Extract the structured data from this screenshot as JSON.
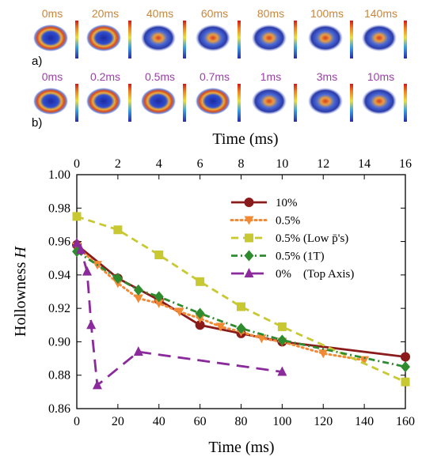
{
  "panels": {
    "a": {
      "label": "a)",
      "frames": [
        "0ms",
        "20ms",
        "40ms",
        "60ms",
        "80ms",
        "100ms",
        "140ms"
      ],
      "label_color": "#c8863c"
    },
    "b": {
      "label": "b)",
      "frames": [
        "0ms",
        "0.2ms",
        "0.5ms",
        "0.7ms",
        "1ms",
        "3ms",
        "10ms"
      ],
      "label_color": "#9b3fa8"
    },
    "frames_axis_label": "Time (ms)"
  },
  "chart_data": {
    "type": "line",
    "xlabel": "Time (ms)",
    "ylabel": "Hollowness H",
    "ylabel_main": "Hollowness ",
    "ylabel_var": "H",
    "xlim": [
      0,
      160
    ],
    "ylim": [
      0.86,
      1.0
    ],
    "x_ticks": [
      "0",
      "20",
      "40",
      "60",
      "80",
      "100",
      "120",
      "140",
      "160"
    ],
    "y_ticks": [
      "0.86",
      "0.88",
      "0.90",
      "0.92",
      "0.94",
      "0.96",
      "0.98",
      "1.00"
    ],
    "top_axis": {
      "xlim": [
        0,
        16
      ],
      "ticks": [
        "0",
        "2",
        "4",
        "6",
        "8",
        "10",
        "12",
        "14",
        "16"
      ]
    },
    "legend_position": "top-right",
    "series": [
      {
        "name": "10%",
        "color": "#8b1a1a",
        "style": "solid",
        "marker": "circle",
        "axis": "bottom",
        "x": [
          0,
          20,
          40,
          60,
          80,
          100,
          160
        ],
        "y": [
          0.958,
          0.938,
          0.925,
          0.91,
          0.905,
          0.9,
          0.891
        ]
      },
      {
        "name": "0.5%",
        "color": "#f28a35",
        "style": "dotted",
        "marker": "triangle-down",
        "axis": "bottom",
        "x": [
          0,
          10,
          20,
          30,
          40,
          50,
          60,
          70,
          80,
          90,
          100,
          120,
          140
        ],
        "y": [
          0.957,
          0.946,
          0.935,
          0.926,
          0.923,
          0.918,
          0.914,
          0.909,
          0.906,
          0.902,
          0.9,
          0.893,
          0.889
        ]
      },
      {
        "name": "0.5% (Low p̄'s)",
        "color": "#c8c832",
        "style": "dashed",
        "marker": "square",
        "axis": "bottom",
        "x": [
          0,
          20,
          40,
          60,
          80,
          100,
          160
        ],
        "y": [
          0.975,
          0.967,
          0.952,
          0.936,
          0.921,
          0.909,
          0.876
        ]
      },
      {
        "name": "0.5% (1T)",
        "color": "#2e8b2e",
        "style": "dash-dot",
        "marker": "diamond",
        "axis": "bottom",
        "x": [
          0,
          20,
          30,
          40,
          60,
          80,
          100,
          160
        ],
        "y": [
          0.954,
          0.938,
          0.931,
          0.927,
          0.917,
          0.908,
          0.901,
          0.885
        ]
      },
      {
        "name": "0%    (Top Axis)",
        "color": "#8b2a9b",
        "style": "long-dash",
        "marker": "triangle-up",
        "axis": "top",
        "x": [
          0,
          0.2,
          0.5,
          0.7,
          1,
          3,
          10
        ],
        "y": [
          0.959,
          0.955,
          0.942,
          0.91,
          0.874,
          0.894,
          0.882
        ]
      }
    ]
  }
}
